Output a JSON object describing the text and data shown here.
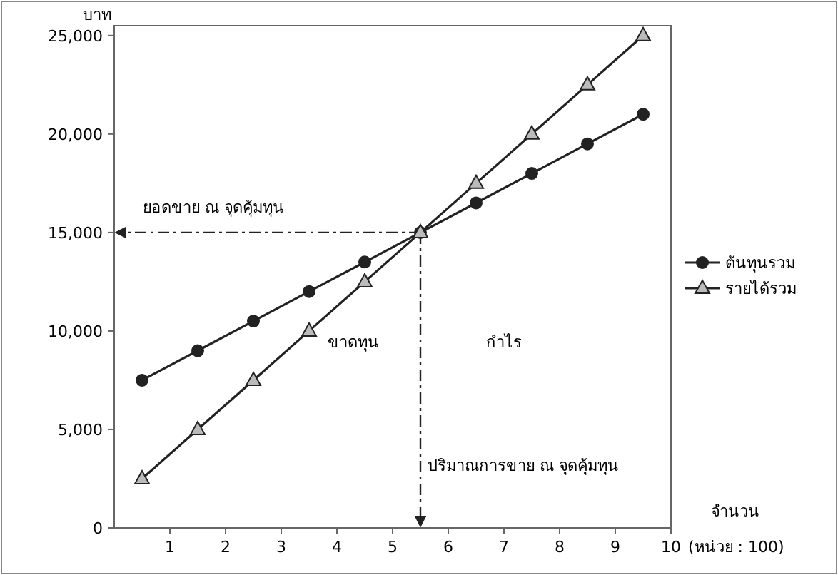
{
  "chart_data": {
    "type": "line",
    "ylabel": "บาท",
    "xlabel": "จำนวน",
    "x": [
      0.5,
      1.5,
      2.5,
      3.5,
      4.5,
      5.5,
      6.5,
      7.5,
      8.5,
      9.5
    ],
    "series": [
      {
        "name": "ต้นทุนรวม",
        "color": "#222222",
        "marker": "circle",
        "values": [
          7500,
          9000,
          10500,
          12000,
          13500,
          15000,
          16500,
          18000,
          19500,
          21000
        ]
      },
      {
        "name": "รายได้รวม",
        "color": "#222222",
        "marker": "triangle",
        "values": [
          2500,
          5000,
          7500,
          10000,
          12500,
          15000,
          17500,
          20000,
          22500,
          25000
        ]
      }
    ],
    "xlim": [
      0,
      10
    ],
    "xticks": [
      1,
      2,
      3,
      4,
      5,
      6,
      7,
      8,
      9,
      10
    ],
    "ylim": [
      0,
      25500
    ],
    "yticks": [
      0,
      {
        "value": 5000,
        "label": "5,000"
      },
      {
        "value": 10000,
        "label": "10,000"
      },
      {
        "value": 15000,
        "label": "15,000"
      },
      {
        "value": 20000,
        "label": "20,000"
      },
      {
        "value": 25000,
        "label": "25,000"
      }
    ],
    "ref_lines": [
      {
        "axis": "y",
        "value": 15000,
        "label": "ยอดขาย ณ จุดคุ้มทุน",
        "line_style": "dashdot"
      },
      {
        "axis": "x",
        "value": 5.5,
        "label": "ปริมาณการขาย ณ จุดคุ้มทุน",
        "line_style": "dashdot"
      }
    ],
    "annotations": [
      "ขาดทุน",
      "กำไร",
      "(หน่วย : 100)"
    ],
    "legend": "right",
    "grid": false,
    "line_style": "solid"
  }
}
